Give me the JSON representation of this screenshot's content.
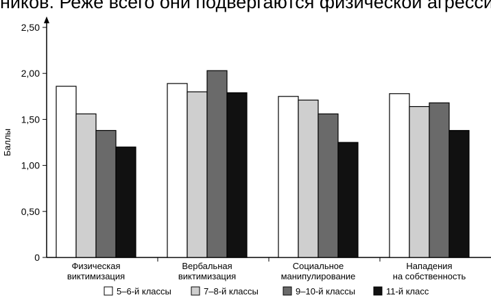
{
  "page_text": {
    "top_line": "ников. Реже всего они подвергаются физической агресси"
  },
  "chart_data": {
    "type": "bar",
    "categories": [
      [
        "Физическая",
        "виктимизация"
      ],
      [
        "Вербальная",
        "виктимизация"
      ],
      [
        "Социальное",
        "манипулирование"
      ],
      [
        "Нападения",
        "на собственность"
      ]
    ],
    "series": [
      {
        "name": "5–6-й классы",
        "color": "#ffffff",
        "values": [
          1.86,
          1.89,
          1.75,
          1.78
        ]
      },
      {
        "name": "7–8-й классы",
        "color": "#cfcfcf",
        "values": [
          1.56,
          1.8,
          1.71,
          1.64
        ]
      },
      {
        "name": "9–10-й классы",
        "color": "#6a6a6a",
        "values": [
          1.38,
          2.03,
          1.56,
          1.68
        ]
      },
      {
        "name": "11-й класс",
        "color": "#111111",
        "values": [
          1.2,
          1.79,
          1.25,
          1.38
        ]
      }
    ],
    "ylabel": "Баллы",
    "xlabel": "",
    "ylim": [
      0,
      2.5
    ],
    "yticks": [
      0,
      0.5,
      1.0,
      1.5,
      2.0,
      2.5
    ],
    "ytick_labels": [
      "0",
      "0,50",
      "1,00",
      "1,50",
      "2,00",
      "2,50"
    ],
    "grid": false,
    "legend_position": "bottom"
  }
}
